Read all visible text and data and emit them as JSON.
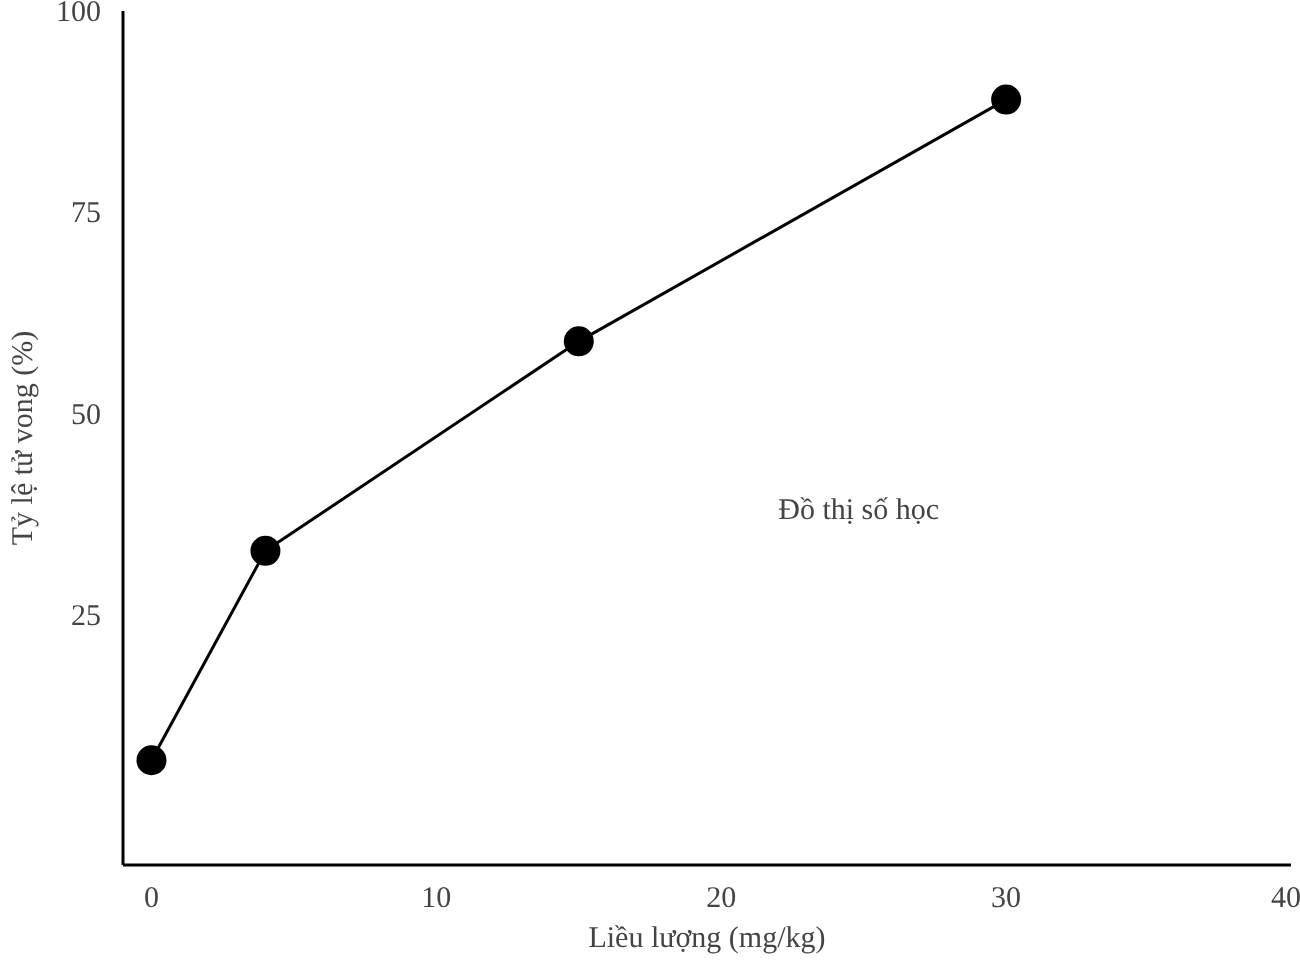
{
  "chart_data": {
    "type": "line",
    "xlabel": "Liều lượng (mg/kg)",
    "ylabel": "Tỷ lệ tử vong (%)",
    "x": [
      0,
      4,
      15,
      30
    ],
    "series": [
      {
        "color": "#000000",
        "values": [
          7,
          33,
          59,
          89
        ]
      }
    ],
    "xlim": [
      -1,
      40
    ],
    "ylim": [
      -6,
      100
    ],
    "xticks": [
      0,
      10,
      20,
      30,
      40
    ],
    "yticks": [
      25,
      50,
      75,
      100
    ],
    "annotations": [
      "Đồ thị số học"
    ],
    "marker": "circle",
    "line_style": "solid",
    "grid": false
  }
}
